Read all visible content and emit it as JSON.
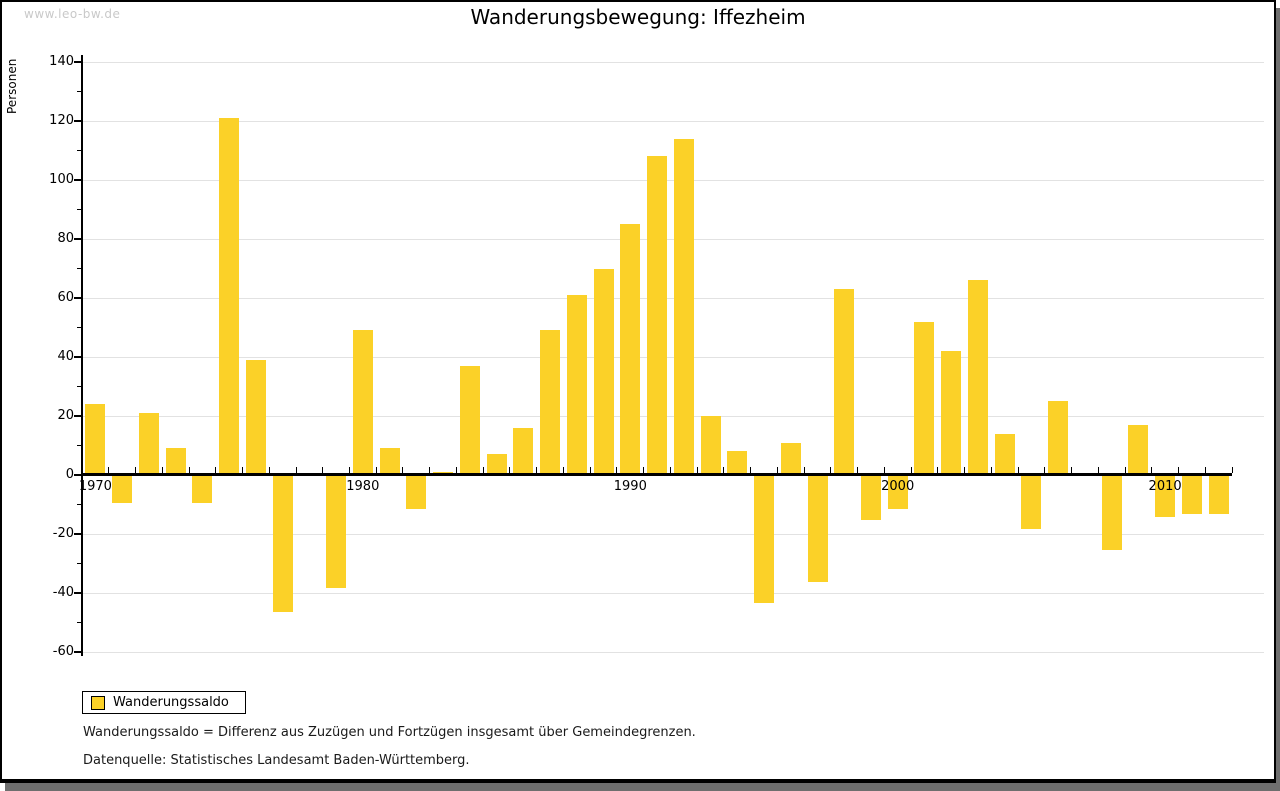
{
  "watermark": "www.leo-bw.de",
  "legend": {
    "label": "Wanderungssaldo"
  },
  "footnotes": [
    "Wanderungssaldo = Differenz aus Zuzügen und Fortzügen insgesamt über Gemeindegrenzen.",
    "Datenquelle: Statistisches Landesamt Baden-Württemberg."
  ],
  "colors": {
    "bar": "#fbd128",
    "grid": "#e2e2e2",
    "axis": "#000000",
    "watermark": "#c9c9c9",
    "frame_shadow": "#6e6e6e"
  },
  "chart_data": {
    "type": "bar",
    "title": "Wanderungsbewegung: Iffezheim",
    "xlabel": "",
    "ylabel": "Personen",
    "series_name": "Wanderungssaldo",
    "years": [
      1970,
      1971,
      1972,
      1973,
      1974,
      1975,
      1976,
      1977,
      1978,
      1979,
      1980,
      1981,
      1982,
      1983,
      1984,
      1985,
      1986,
      1987,
      1988,
      1989,
      1990,
      1991,
      1992,
      1993,
      1994,
      1995,
      1996,
      1997,
      1998,
      1999,
      2000,
      2001,
      2002,
      2003,
      2004,
      2005,
      2006,
      2007,
      2008,
      2009,
      2010,
      2011,
      2012
    ],
    "values": [
      24,
      -9,
      21,
      9,
      -9,
      121,
      39,
      -46,
      0,
      -38,
      49,
      9,
      -11,
      1,
      37,
      7,
      16,
      49,
      61,
      70,
      85,
      108,
      114,
      20,
      8,
      -43,
      11,
      -36,
      63,
      -15,
      -11,
      52,
      42,
      66,
      14,
      -18,
      25,
      0,
      -25,
      17,
      -14,
      -13,
      -13
    ],
    "ylim": [
      -60,
      140
    ],
    "yticks": [
      140,
      120,
      100,
      80,
      60,
      40,
      20,
      0,
      -20,
      -40,
      -60
    ],
    "ytick_labels": [
      "140",
      "120",
      "100",
      "80",
      "60",
      "40",
      "20",
      "0",
      "-20",
      "-40",
      "-60"
    ],
    "yticks_minor": [
      130,
      110,
      90,
      70,
      50,
      30,
      10,
      -10,
      -30,
      -50
    ],
    "xticks": [
      {
        "year": 1970,
        "label": "1970"
      },
      {
        "year": 1980,
        "label": "1980"
      },
      {
        "year": 1990,
        "label": "1990"
      },
      {
        "year": 2000,
        "label": "2000"
      },
      {
        "year": 2010,
        "label": "2010"
      }
    ],
    "grid": true,
    "legend_position": "bottom-left"
  }
}
